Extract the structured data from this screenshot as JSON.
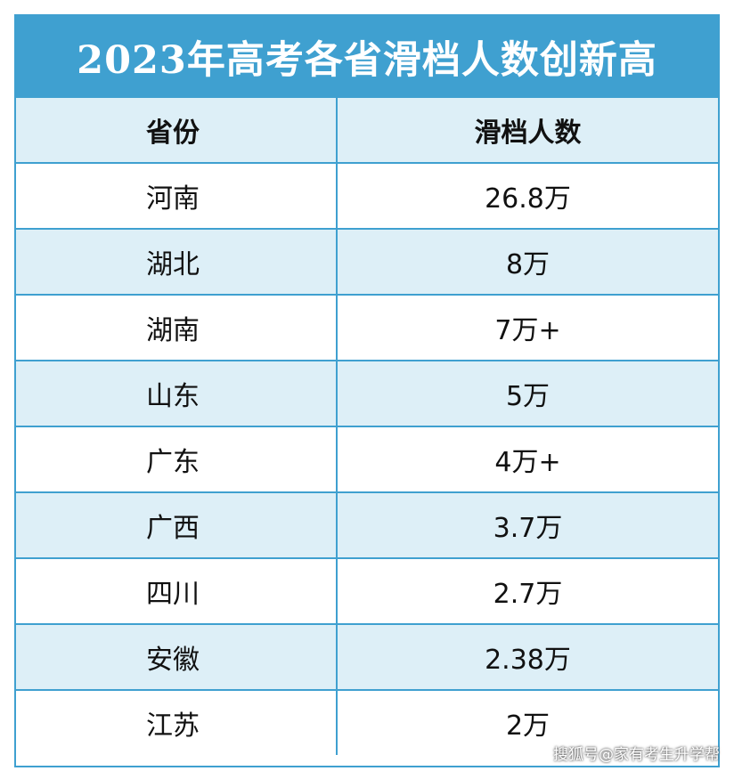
{
  "title": "2023年高考各省滑档人数创新高",
  "headers": {
    "province": "省份",
    "count": "滑档人数"
  },
  "rows": [
    {
      "province": "河南",
      "count": "26.8万"
    },
    {
      "province": "湖北",
      "count": "8万"
    },
    {
      "province": "湖南",
      "count": "7万+"
    },
    {
      "province": "山东",
      "count": "5万"
    },
    {
      "province": "广东",
      "count": "4万+"
    },
    {
      "province": "广西",
      "count": "3.7万"
    },
    {
      "province": "四川",
      "count": "2.7万"
    },
    {
      "province": "安徽",
      "count": "2.38万"
    },
    {
      "province": "江苏",
      "count": "2万"
    }
  ],
  "watermark": "搜狐号@家有考生升学帮",
  "colors": {
    "accent": "#3fa0d0",
    "row_shade": "#ddeff7"
  }
}
